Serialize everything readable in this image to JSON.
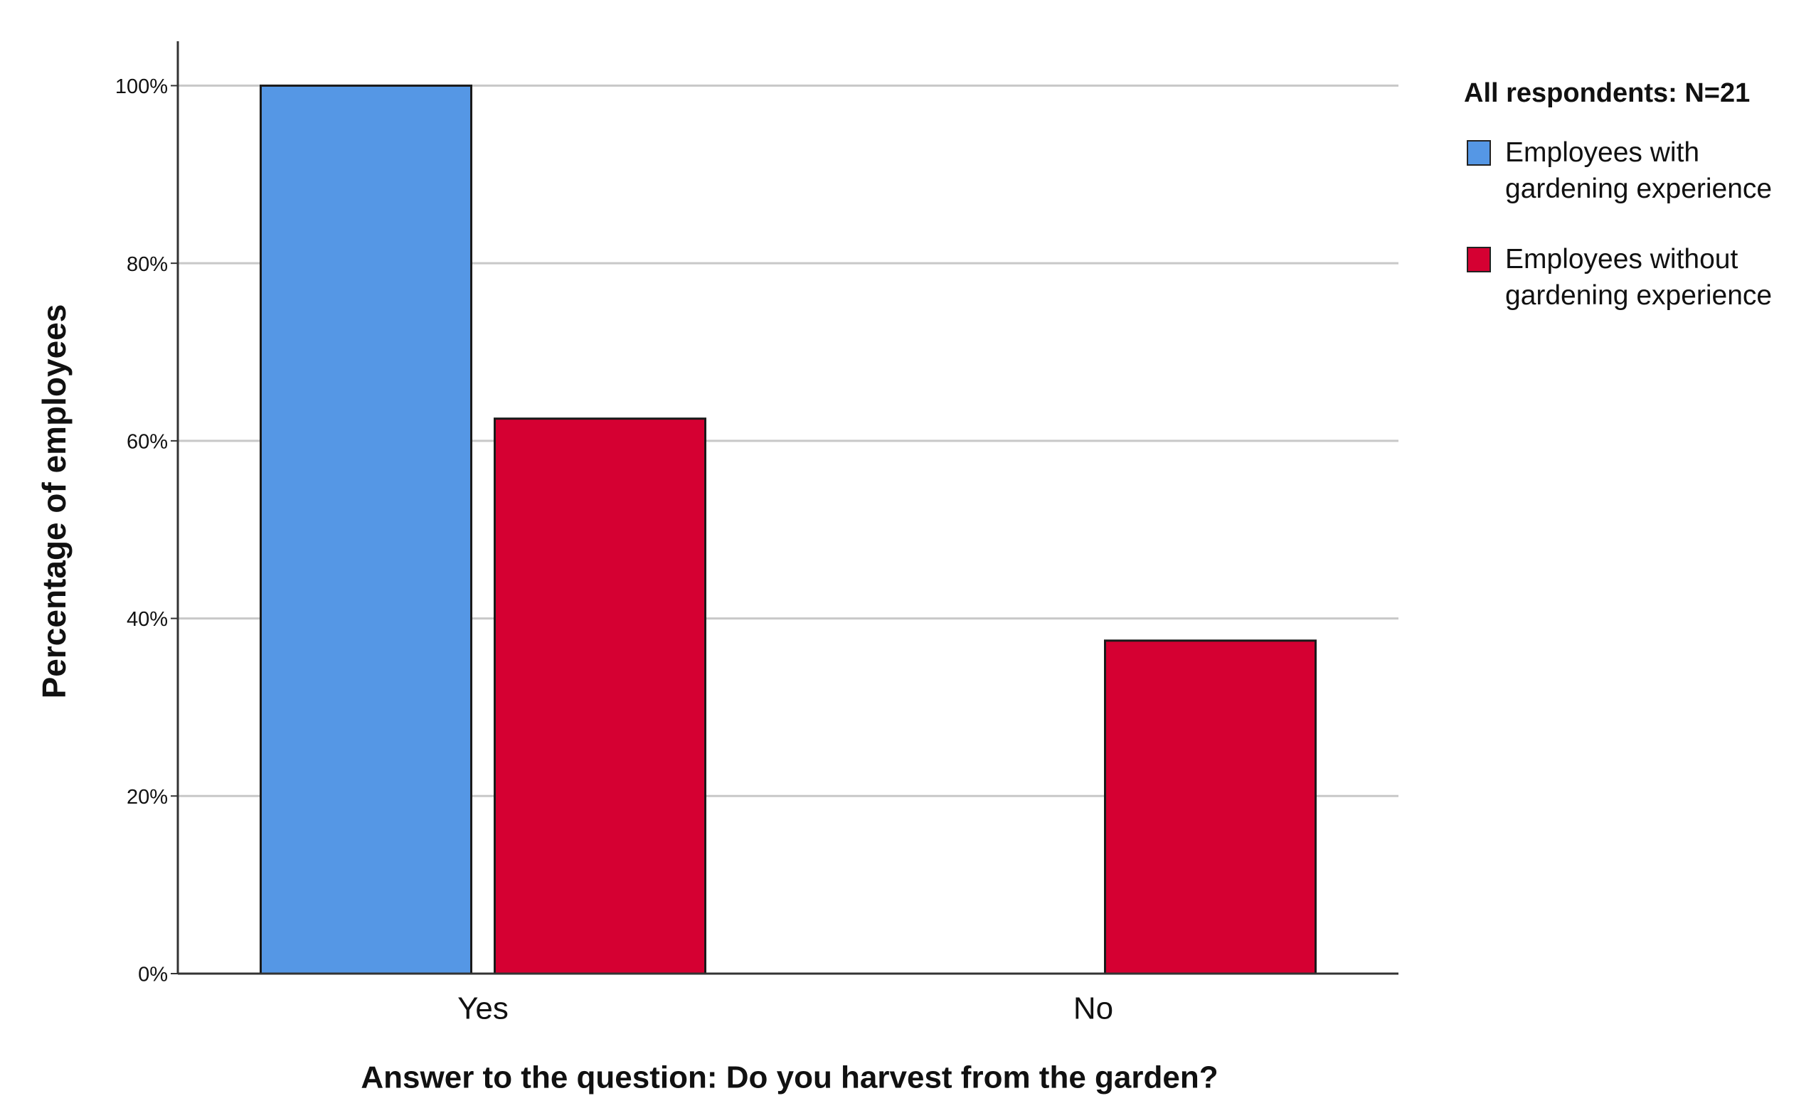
{
  "chart_data": {
    "type": "bar",
    "x_label": "Answer to the question: Do you harvest from the garden?",
    "y_label": "Percentage of employees",
    "legend_title": "All respondents: N=21",
    "categories": [
      "Yes",
      "No"
    ],
    "series": [
      {
        "name": "Employees with gardening experience",
        "color": "#5597e5",
        "values": [
          100,
          0
        ]
      },
      {
        "name": "Employees without gardening experience",
        "color": "#d50032",
        "values": [
          62.5,
          37.5
        ]
      }
    ],
    "ylim": [
      0,
      105
    ],
    "yticks": [
      {
        "value": 0,
        "label": "0%"
      },
      {
        "value": 20,
        "label": "20%"
      },
      {
        "value": 40,
        "label": "40%"
      },
      {
        "value": 60,
        "label": "60%"
      },
      {
        "value": 80,
        "label": "80%"
      },
      {
        "value": 100,
        "label": "100%"
      }
    ],
    "grid": true,
    "legend": "right"
  }
}
